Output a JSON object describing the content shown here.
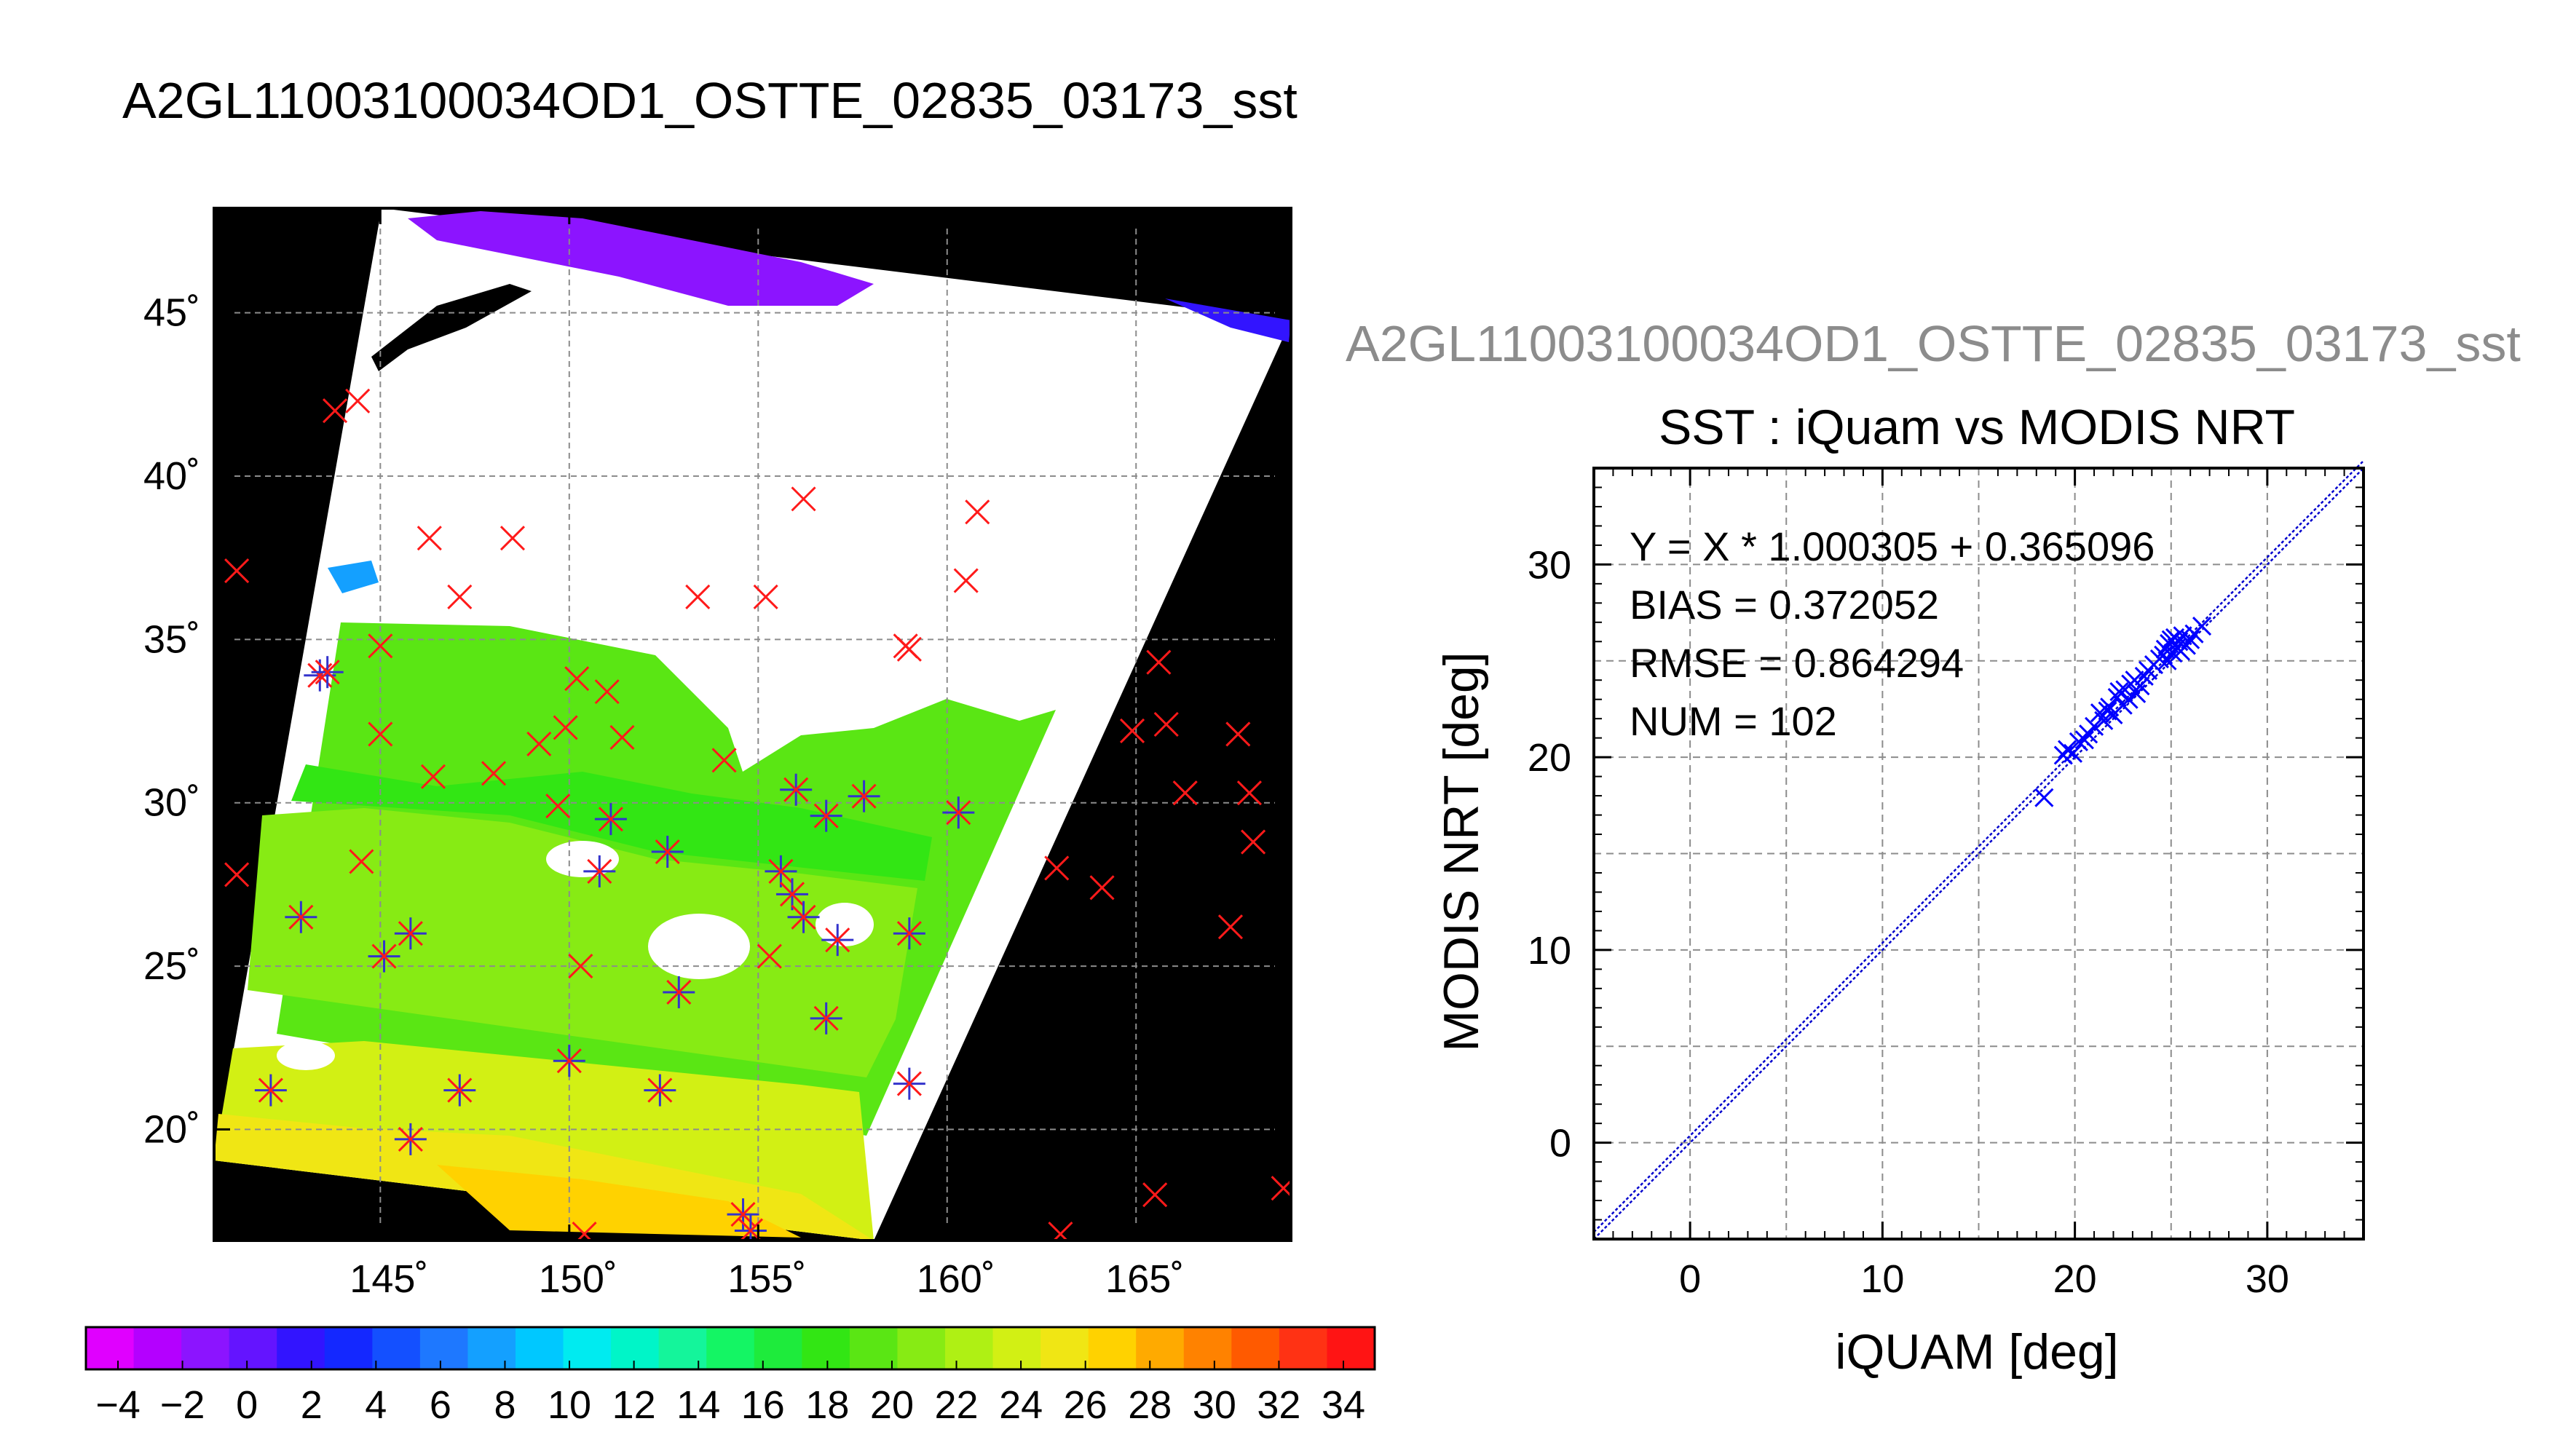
{
  "page": {
    "title": "A2GL11003100034OD1_OSTTE_02835_03173_sst"
  },
  "map": {
    "lon_range": [
      140.6,
      169.1
    ],
    "lat_range": [
      16.6,
      48.2
    ],
    "lon_ticks": [
      145,
      150,
      155,
      160,
      165
    ],
    "lat_ticks": [
      20,
      25,
      30,
      35,
      40,
      45
    ],
    "lon_tick_labels": [
      "145˚",
      "150˚",
      "155˚",
      "160˚",
      "165˚"
    ],
    "lat_tick_labels": [
      "20˚",
      "25˚",
      "30˚",
      "35˚",
      "40˚",
      "45˚"
    ],
    "colors": {
      "background": "#000000",
      "cloud": "#ffffff",
      "grid": "#8c8c8c",
      "buoy_marker": "#ff1a1a",
      "match_marker": "#3333cc"
    },
    "buoy_points": [
      [
        141.2,
        37.1
      ],
      [
        141.2,
        27.8
      ],
      [
        143.8,
        42.0
      ],
      [
        144.4,
        42.3
      ],
      [
        144.5,
        28.2
      ],
      [
        145.0,
        32.1
      ],
      [
        145.0,
        34.8
      ],
      [
        146.3,
        38.1
      ],
      [
        146.4,
        30.8
      ],
      [
        147.1,
        36.3
      ],
      [
        148.0,
        30.9
      ],
      [
        148.5,
        38.1
      ],
      [
        149.2,
        31.8
      ],
      [
        149.7,
        29.9
      ],
      [
        149.9,
        32.3
      ],
      [
        150.2,
        33.8
      ],
      [
        150.3,
        25.0
      ],
      [
        150.4,
        16.8
      ],
      [
        151.0,
        33.4
      ],
      [
        151.4,
        32.0
      ],
      [
        153.4,
        36.3
      ],
      [
        154.1,
        31.3
      ],
      [
        155.2,
        36.3
      ],
      [
        155.3,
        25.3
      ],
      [
        156.2,
        39.3
      ],
      [
        158.9,
        34.8
      ],
      [
        159.0,
        34.7
      ],
      [
        160.5,
        36.8
      ],
      [
        160.8,
        38.9
      ],
      [
        162.9,
        28.0
      ],
      [
        163.0,
        16.8
      ],
      [
        164.1,
        27.4
      ],
      [
        164.9,
        32.2
      ],
      [
        165.5,
        18.0
      ],
      [
        165.6,
        34.3
      ],
      [
        165.8,
        32.4
      ],
      [
        166.3,
        30.3
      ],
      [
        167.5,
        26.2
      ],
      [
        167.7,
        32.1
      ],
      [
        168.0,
        30.3
      ],
      [
        168.1,
        28.8
      ],
      [
        168.9,
        18.2
      ]
    ],
    "matched_points": [
      [
        142.1,
        21.2
      ],
      [
        142.9,
        26.5
      ],
      [
        143.4,
        33.9
      ],
      [
        143.6,
        34.0
      ],
      [
        145.1,
        25.3
      ],
      [
        145.8,
        19.7
      ],
      [
        145.8,
        26.0
      ],
      [
        147.1,
        21.2
      ],
      [
        150.0,
        22.1
      ],
      [
        150.8,
        27.9
      ],
      [
        151.1,
        29.5
      ],
      [
        152.4,
        21.2
      ],
      [
        152.6,
        28.5
      ],
      [
        152.9,
        24.2
      ],
      [
        154.6,
        17.4
      ],
      [
        154.8,
        16.9
      ],
      [
        155.6,
        27.9
      ],
      [
        155.9,
        27.2
      ],
      [
        156.0,
        30.4
      ],
      [
        156.2,
        26.5
      ],
      [
        156.8,
        29.6
      ],
      [
        156.8,
        23.4
      ],
      [
        157.1,
        25.8
      ],
      [
        157.8,
        30.2
      ],
      [
        159.0,
        21.4
      ],
      [
        159.0,
        26.0
      ],
      [
        160.3,
        29.7
      ]
    ]
  },
  "colorbar": {
    "ticks": [
      "−4",
      "−2",
      "0",
      "2",
      "4",
      "6",
      "8",
      "10",
      "12",
      "14",
      "16",
      "18",
      "20",
      "22",
      "24",
      "26",
      "28",
      "30",
      "32",
      "34"
    ],
    "colors": [
      "#e000ff",
      "#b400ff",
      "#8c14ff",
      "#6414ff",
      "#3214ff",
      "#1428ff",
      "#1450ff",
      "#1e78ff",
      "#14a0ff",
      "#00c8ff",
      "#00ebf0",
      "#00f5c8",
      "#14f59b",
      "#14f564",
      "#1eeb3c",
      "#32e614",
      "#5ae614",
      "#87eb14",
      "#aff014",
      "#d2f014",
      "#f0e614",
      "#ffd200",
      "#ffaa00",
      "#ff8200",
      "#ff5a00",
      "#ff3214",
      "#ff1414"
    ]
  },
  "scatter": {
    "file_title": "A2GL11003100034OD1_OSTTE_02835_03173_sst",
    "title": "SST : iQuam vs MODIS NRT",
    "xlabel": "iQUAM [deg]",
    "ylabel": "MODIS NRT [deg]",
    "stats": [
      "Y = X * 1.000305 + 0.365096",
      "BIAS = 0.372052",
      "RMSE = 0.864294",
      "NUM = 102"
    ],
    "marker_color": "#0000ff"
  },
  "chart_data": {
    "type": "scatter",
    "title": "SST : iQuam vs MODIS NRT",
    "xlabel": "iQUAM [deg]",
    "ylabel": "MODIS NRT [deg]",
    "xlim": [
      -5,
      35
    ],
    "ylim": [
      -5,
      35
    ],
    "xticks": [
      0,
      10,
      20,
      30
    ],
    "yticks": [
      0,
      10,
      20,
      30
    ],
    "grid": true,
    "fit": {
      "slope": 1.000305,
      "intercept": 0.365096
    },
    "series": [
      {
        "x": [
          18.4,
          19.4,
          19.6,
          19.9,
          20.2,
          20.5,
          20.7,
          21.0,
          21.3,
          21.5,
          21.7,
          21.8,
          22.0,
          22.2,
          22.3,
          22.5,
          22.6,
          22.8,
          22.9,
          23.1,
          23.2,
          23.4,
          23.6,
          23.8,
          24.1,
          24.4,
          24.6,
          24.7,
          24.8,
          24.9,
          25.0,
          25.1,
          25.2,
          25.3,
          25.4,
          25.5,
          25.6,
          25.8,
          26.0,
          26.2,
          26.6
        ],
        "y": [
          17.9,
          20.1,
          20.4,
          20.2,
          20.8,
          20.9,
          21.2,
          21.6,
          22.3,
          21.9,
          22.4,
          22.6,
          22.2,
          23.1,
          23.4,
          22.7,
          23.5,
          23.0,
          23.8,
          24.0,
          23.3,
          23.7,
          24.2,
          24.5,
          24.8,
          25.1,
          25.3,
          25.6,
          25.0,
          25.9,
          26.1,
          25.4,
          26.2,
          25.7,
          26.0,
          25.5,
          26.3,
          25.8,
          26.1,
          26.4,
          26.8
        ]
      }
    ]
  }
}
